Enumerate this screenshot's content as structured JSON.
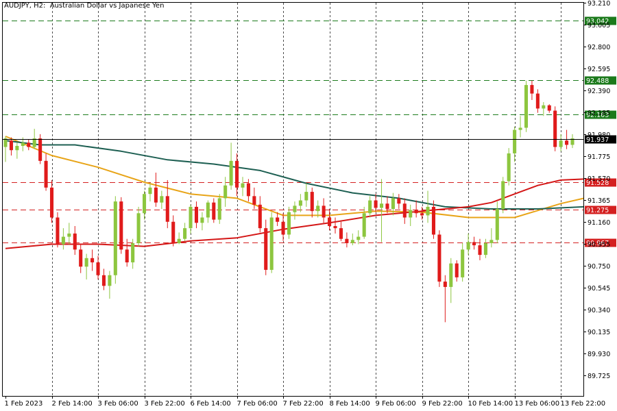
{
  "header": {
    "symbol_timeframe": "AUDJPY, H2:",
    "description": "Australian Dollar vs Japanese Yen"
  },
  "chart_data": {
    "type": "candlestick",
    "symbol": "AUDJPY",
    "timeframe": "H2",
    "y_ticks": [
      "93.210",
      "93.005",
      "92.800",
      "92.595",
      "92.390",
      "92.185",
      "91.980",
      "91.775",
      "91.570",
      "91.365",
      "91.160",
      "90.955",
      "90.750",
      "90.545",
      "90.340",
      "90.135",
      "89.930",
      "89.725"
    ],
    "ylim": [
      89.53,
      93.21
    ],
    "x_ticks": [
      "1 Feb 2023",
      "2 Feb 14:00",
      "3 Feb 06:00",
      "3 Feb 22:00",
      "6 Feb 14:00",
      "7 Feb 06:00",
      "7 Feb 22:00",
      "8 Feb 14:00",
      "9 Feb 06:00",
      "9 Feb 22:00",
      "10 Feb 14:00",
      "13 Feb 06:00",
      "13 Feb 22:00"
    ],
    "current_price": {
      "value": 91.937,
      "label": "91.937",
      "color": "#000000"
    },
    "horizontal_levels": [
      {
        "value": 93.042,
        "label": "93.042",
        "style": "dashed",
        "color": "#1b7a1b"
      },
      {
        "value": 92.488,
        "label": "92.488",
        "style": "dashed",
        "color": "#1b7a1b"
      },
      {
        "value": 92.163,
        "label": "92.163",
        "style": "dashed",
        "color": "#1b7a1b"
      },
      {
        "value": 91.528,
        "label": "91.528",
        "style": "dashed",
        "color": "#d42020"
      },
      {
        "value": 91.275,
        "label": "91.275",
        "style": "dashed",
        "color": "#d42020"
      },
      {
        "value": 90.967,
        "label": "90.967",
        "style": "dashed",
        "color": "#d42020"
      }
    ],
    "bull_color": "#8dc63f",
    "bear_color": "#e01b1b",
    "candles": [
      {
        "o": 91.86,
        "h": 91.96,
        "l": 91.72,
        "c": 91.94
      },
      {
        "o": 91.92,
        "h": 91.95,
        "l": 91.78,
        "c": 91.83
      },
      {
        "o": 91.83,
        "h": 91.9,
        "l": 91.75,
        "c": 91.87
      },
      {
        "o": 91.87,
        "h": 91.95,
        "l": 91.82,
        "c": 91.9
      },
      {
        "o": 91.9,
        "h": 91.93,
        "l": 91.83,
        "c": 91.86
      },
      {
        "o": 91.86,
        "h": 92.03,
        "l": 91.84,
        "c": 91.94
      },
      {
        "o": 91.94,
        "h": 91.98,
        "l": 91.7,
        "c": 91.73
      },
      {
        "o": 91.73,
        "h": 91.8,
        "l": 91.45,
        "c": 91.48
      },
      {
        "o": 91.48,
        "h": 91.55,
        "l": 91.15,
        "c": 91.2
      },
      {
        "o": 91.2,
        "h": 91.25,
        "l": 90.92,
        "c": 90.95
      },
      {
        "o": 90.95,
        "h": 91.1,
        "l": 90.9,
        "c": 91.02
      },
      {
        "o": 91.02,
        "h": 91.15,
        "l": 90.95,
        "c": 91.05
      },
      {
        "o": 91.05,
        "h": 91.12,
        "l": 90.85,
        "c": 90.9
      },
      {
        "o": 90.9,
        "h": 90.95,
        "l": 90.68,
        "c": 90.74
      },
      {
        "o": 90.74,
        "h": 90.86,
        "l": 90.62,
        "c": 90.82
      },
      {
        "o": 90.82,
        "h": 90.9,
        "l": 90.7,
        "c": 90.78
      },
      {
        "o": 90.78,
        "h": 90.84,
        "l": 90.62,
        "c": 90.66
      },
      {
        "o": 90.66,
        "h": 90.72,
        "l": 90.52,
        "c": 90.56
      },
      {
        "o": 90.56,
        "h": 90.7,
        "l": 90.44,
        "c": 90.66
      },
      {
        "o": 90.66,
        "h": 91.4,
        "l": 90.58,
        "c": 91.35
      },
      {
        "o": 91.35,
        "h": 91.39,
        "l": 90.86,
        "c": 90.9
      },
      {
        "o": 90.9,
        "h": 91.0,
        "l": 90.74,
        "c": 90.78
      },
      {
        "o": 90.78,
        "h": 91.0,
        "l": 90.72,
        "c": 90.96
      },
      {
        "o": 90.96,
        "h": 91.3,
        "l": 90.93,
        "c": 91.24
      },
      {
        "o": 91.24,
        "h": 91.45,
        "l": 91.18,
        "c": 91.42
      },
      {
        "o": 91.42,
        "h": 91.52,
        "l": 91.35,
        "c": 91.48
      },
      {
        "o": 91.48,
        "h": 91.62,
        "l": 91.3,
        "c": 91.34
      },
      {
        "o": 91.34,
        "h": 91.45,
        "l": 91.28,
        "c": 91.4
      },
      {
        "o": 91.4,
        "h": 91.55,
        "l": 91.1,
        "c": 91.16
      },
      {
        "o": 91.16,
        "h": 91.22,
        "l": 90.93,
        "c": 90.96
      },
      {
        "o": 90.96,
        "h": 91.06,
        "l": 90.95,
        "c": 91.0
      },
      {
        "o": 91.0,
        "h": 91.15,
        "l": 90.98,
        "c": 91.1
      },
      {
        "o": 91.1,
        "h": 91.32,
        "l": 91.05,
        "c": 91.3
      },
      {
        "o": 91.3,
        "h": 91.35,
        "l": 91.1,
        "c": 91.15
      },
      {
        "o": 91.15,
        "h": 91.25,
        "l": 91.08,
        "c": 91.2
      },
      {
        "o": 91.2,
        "h": 91.36,
        "l": 91.15,
        "c": 91.34
      },
      {
        "o": 91.34,
        "h": 91.38,
        "l": 91.15,
        "c": 91.18
      },
      {
        "o": 91.18,
        "h": 91.42,
        "l": 91.14,
        "c": 91.38
      },
      {
        "o": 91.38,
        "h": 91.58,
        "l": 91.3,
        "c": 91.5
      },
      {
        "o": 91.5,
        "h": 91.9,
        "l": 91.46,
        "c": 91.73
      },
      {
        "o": 91.73,
        "h": 91.8,
        "l": 91.4,
        "c": 91.48
      },
      {
        "o": 91.48,
        "h": 91.58,
        "l": 91.4,
        "c": 91.52
      },
      {
        "o": 91.52,
        "h": 91.56,
        "l": 91.35,
        "c": 91.4
      },
      {
        "o": 91.4,
        "h": 91.48,
        "l": 91.28,
        "c": 91.32
      },
      {
        "o": 91.32,
        "h": 91.4,
        "l": 91.06,
        "c": 91.1
      },
      {
        "o": 91.1,
        "h": 91.18,
        "l": 90.66,
        "c": 90.71
      },
      {
        "o": 90.71,
        "h": 91.25,
        "l": 90.68,
        "c": 91.2
      },
      {
        "o": 91.2,
        "h": 91.25,
        "l": 91.12,
        "c": 91.16
      },
      {
        "o": 91.16,
        "h": 91.24,
        "l": 90.98,
        "c": 91.04
      },
      {
        "o": 91.04,
        "h": 91.3,
        "l": 91.0,
        "c": 91.25
      },
      {
        "o": 91.25,
        "h": 91.35,
        "l": 91.18,
        "c": 91.31
      },
      {
        "o": 91.31,
        "h": 91.42,
        "l": 91.25,
        "c": 91.36
      },
      {
        "o": 91.36,
        "h": 91.52,
        "l": 91.3,
        "c": 91.44
      },
      {
        "o": 91.44,
        "h": 91.48,
        "l": 91.2,
        "c": 91.26
      },
      {
        "o": 91.26,
        "h": 91.36,
        "l": 91.2,
        "c": 91.31
      },
      {
        "o": 91.31,
        "h": 91.38,
        "l": 91.15,
        "c": 91.2
      },
      {
        "o": 91.2,
        "h": 91.28,
        "l": 91.08,
        "c": 91.12
      },
      {
        "o": 91.12,
        "h": 91.2,
        "l": 91.05,
        "c": 91.1
      },
      {
        "o": 91.1,
        "h": 91.16,
        "l": 90.98,
        "c": 91.0
      },
      {
        "o": 91.0,
        "h": 91.06,
        "l": 90.92,
        "c": 90.96
      },
      {
        "o": 90.96,
        "h": 91.05,
        "l": 90.94,
        "c": 90.99
      },
      {
        "o": 90.99,
        "h": 91.08,
        "l": 90.95,
        "c": 91.02
      },
      {
        "o": 91.02,
        "h": 91.3,
        "l": 91.0,
        "c": 91.24
      },
      {
        "o": 91.24,
        "h": 91.4,
        "l": 91.2,
        "c": 91.36
      },
      {
        "o": 91.36,
        "h": 91.42,
        "l": 91.25,
        "c": 91.29
      },
      {
        "o": 91.29,
        "h": 91.56,
        "l": 90.97,
        "c": 91.33
      },
      {
        "o": 91.33,
        "h": 91.4,
        "l": 91.24,
        "c": 91.28
      },
      {
        "o": 91.28,
        "h": 91.43,
        "l": 91.22,
        "c": 91.38
      },
      {
        "o": 91.38,
        "h": 91.42,
        "l": 91.28,
        "c": 91.33
      },
      {
        "o": 91.33,
        "h": 91.38,
        "l": 91.14,
        "c": 91.2
      },
      {
        "o": 91.2,
        "h": 91.32,
        "l": 91.12,
        "c": 91.27
      },
      {
        "o": 91.27,
        "h": 91.36,
        "l": 91.2,
        "c": 91.24
      },
      {
        "o": 91.24,
        "h": 91.3,
        "l": 91.18,
        "c": 91.22
      },
      {
        "o": 91.22,
        "h": 91.45,
        "l": 91.15,
        "c": 91.3
      },
      {
        "o": 91.3,
        "h": 91.36,
        "l": 91.0,
        "c": 91.04
      },
      {
        "o": 91.04,
        "h": 91.08,
        "l": 90.55,
        "c": 90.6
      },
      {
        "o": 90.6,
        "h": 90.66,
        "l": 90.22,
        "c": 90.55
      },
      {
        "o": 90.55,
        "h": 90.82,
        "l": 90.4,
        "c": 90.77
      },
      {
        "o": 90.77,
        "h": 90.8,
        "l": 90.6,
        "c": 90.64
      },
      {
        "o": 90.64,
        "h": 90.96,
        "l": 90.6,
        "c": 90.9
      },
      {
        "o": 90.9,
        "h": 91.05,
        "l": 90.85,
        "c": 90.97
      },
      {
        "o": 90.97,
        "h": 91.02,
        "l": 90.9,
        "c": 90.94
      },
      {
        "o": 90.94,
        "h": 91.0,
        "l": 90.8,
        "c": 90.85
      },
      {
        "o": 90.85,
        "h": 91.0,
        "l": 90.82,
        "c": 90.96
      },
      {
        "o": 90.96,
        "h": 91.1,
        "l": 90.92,
        "c": 90.99
      },
      {
        "o": 90.99,
        "h": 91.35,
        "l": 90.96,
        "c": 91.28
      },
      {
        "o": 91.28,
        "h": 91.58,
        "l": 91.24,
        "c": 91.54
      },
      {
        "o": 91.54,
        "h": 91.85,
        "l": 91.5,
        "c": 91.8
      },
      {
        "o": 91.8,
        "h": 92.05,
        "l": 91.72,
        "c": 92.02
      },
      {
        "o": 92.02,
        "h": 92.15,
        "l": 91.95,
        "c": 92.04
      },
      {
        "o": 92.04,
        "h": 92.48,
        "l": 92.0,
        "c": 92.44
      },
      {
        "o": 92.44,
        "h": 92.48,
        "l": 92.3,
        "c": 92.36
      },
      {
        "o": 92.36,
        "h": 92.4,
        "l": 92.18,
        "c": 92.22
      },
      {
        "o": 92.22,
        "h": 92.28,
        "l": 92.15,
        "c": 92.25
      },
      {
        "o": 92.25,
        "h": 92.26,
        "l": 92.18,
        "c": 92.2
      },
      {
        "o": 92.2,
        "h": 92.24,
        "l": 91.82,
        "c": 91.86
      },
      {
        "o": 91.86,
        "h": 91.98,
        "l": 91.82,
        "c": 91.92
      },
      {
        "o": 91.92,
        "h": 92.02,
        "l": 91.84,
        "c": 91.88
      },
      {
        "o": 91.88,
        "h": 91.98,
        "l": 91.85,
        "c": 91.94
      }
    ],
    "moving_averages": [
      {
        "color": "#e8a417",
        "values": [
          [
            0,
            91.96
          ],
          [
            8,
            91.78
          ],
          [
            16,
            91.67
          ],
          [
            24,
            91.53
          ],
          [
            32,
            91.42
          ],
          [
            40,
            91.38
          ],
          [
            48,
            91.22
          ],
          [
            56,
            91.22
          ],
          [
            64,
            91.26
          ],
          [
            72,
            91.25
          ],
          [
            80,
            91.2
          ],
          [
            88,
            91.2
          ],
          [
            96,
            91.33
          ],
          [
            100,
            91.38
          ]
        ]
      },
      {
        "color": "#1d5f52",
        "values": [
          [
            0,
            91.92
          ],
          [
            6,
            91.88
          ],
          [
            12,
            91.88
          ],
          [
            20,
            91.82
          ],
          [
            28,
            91.74
          ],
          [
            36,
            91.7
          ],
          [
            44,
            91.64
          ],
          [
            52,
            91.52
          ],
          [
            60,
            91.43
          ],
          [
            68,
            91.38
          ],
          [
            76,
            91.3
          ],
          [
            84,
            91.28
          ],
          [
            92,
            91.28
          ],
          [
            100,
            91.3
          ]
        ]
      },
      {
        "color": "#d41616",
        "values": [
          [
            0,
            90.91
          ],
          [
            8,
            90.95
          ],
          [
            16,
            90.95
          ],
          [
            24,
            90.93
          ],
          [
            32,
            90.98
          ],
          [
            40,
            91.01
          ],
          [
            48,
            91.09
          ],
          [
            56,
            91.15
          ],
          [
            64,
            91.22
          ],
          [
            72,
            91.26
          ],
          [
            80,
            91.3
          ],
          [
            84,
            91.34
          ],
          [
            88,
            91.42
          ],
          [
            92,
            91.5
          ],
          [
            96,
            91.55
          ],
          [
            100,
            91.56
          ]
        ]
      }
    ]
  }
}
